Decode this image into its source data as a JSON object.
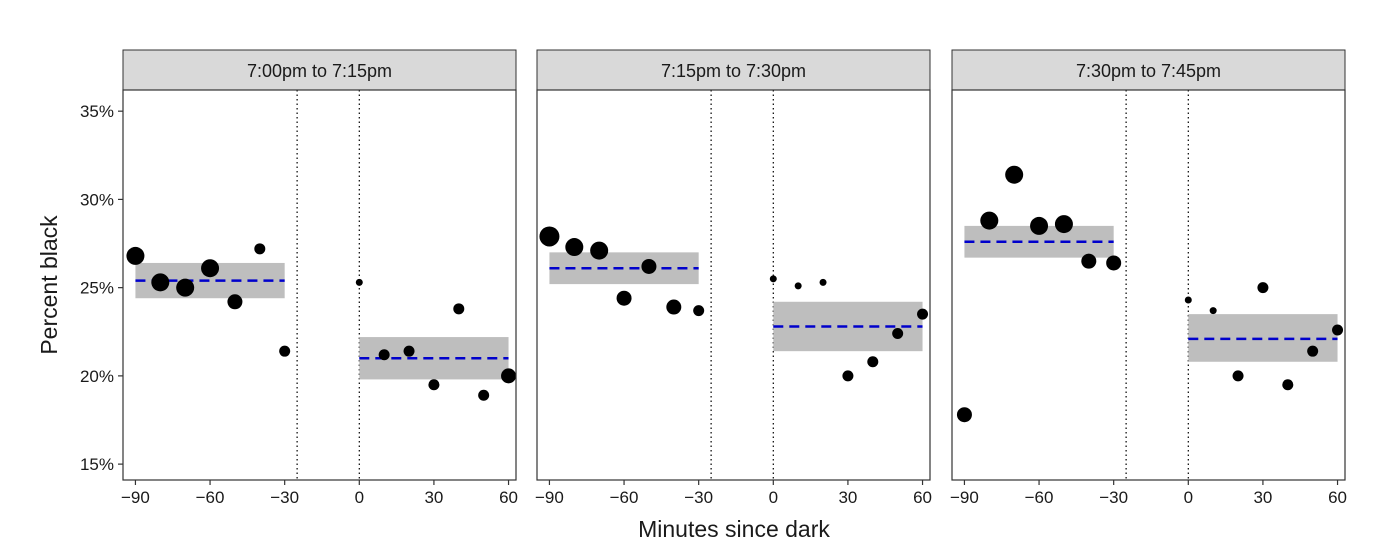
{
  "chart_data": {
    "type": "scatter",
    "xlabel": "Minutes since dark",
    "ylabel": "Percent black",
    "xlim": [
      -95,
      63
    ],
    "ylim": [
      14.1,
      36.2
    ],
    "x_ticks": [
      -90,
      -60,
      -30,
      0,
      30,
      60
    ],
    "y_ticks": [
      15,
      20,
      25,
      30,
      35
    ],
    "y_tick_labels": [
      "15%",
      "20%",
      "25%",
      "30%",
      "35%"
    ],
    "vlines": [
      -25,
      0
    ],
    "colors": {
      "points": "#000000",
      "fit": "#0000cc",
      "band": "#bebebe",
      "strip": "#d9d9d9"
    },
    "panels": [
      {
        "label": "7:00pm to 7:15pm",
        "points": [
          {
            "x": -90,
            "y": 26.8,
            "size": 3
          },
          {
            "x": -80,
            "y": 25.3,
            "size": 3
          },
          {
            "x": -70,
            "y": 25.0,
            "size": 3
          },
          {
            "x": -60,
            "y": 26.1,
            "size": 3
          },
          {
            "x": -50,
            "y": 24.2,
            "size": 2
          },
          {
            "x": -40,
            "y": 27.2,
            "size": 1
          },
          {
            "x": -30,
            "y": 21.4,
            "size": 1
          },
          {
            "x": 0,
            "y": 25.3,
            "size": 0
          },
          {
            "x": 10,
            "y": 21.2,
            "size": 1
          },
          {
            "x": 20,
            "y": 21.4,
            "size": 1
          },
          {
            "x": 30,
            "y": 19.5,
            "size": 1
          },
          {
            "x": 40,
            "y": 23.8,
            "size": 1
          },
          {
            "x": 50,
            "y": 18.9,
            "size": 1
          },
          {
            "x": 60,
            "y": 20.0,
            "size": 2
          }
        ],
        "fits": [
          {
            "x_start": -90,
            "x_end": -30,
            "y": 25.4,
            "lower": 24.4,
            "upper": 26.4
          },
          {
            "x_start": 0,
            "x_end": 60,
            "y": 21.0,
            "lower": 19.8,
            "upper": 22.2
          }
        ]
      },
      {
        "label": "7:15pm to 7:30pm",
        "points": [
          {
            "x": -90,
            "y": 27.9,
            "size": 4
          },
          {
            "x": -80,
            "y": 27.3,
            "size": 3
          },
          {
            "x": -70,
            "y": 27.1,
            "size": 3
          },
          {
            "x": -60,
            "y": 24.4,
            "size": 2
          },
          {
            "x": -50,
            "y": 26.2,
            "size": 2
          },
          {
            "x": -40,
            "y": 23.9,
            "size": 2
          },
          {
            "x": -30,
            "y": 23.7,
            "size": 1
          },
          {
            "x": 0,
            "y": 25.5,
            "size": 0
          },
          {
            "x": 10,
            "y": 25.1,
            "size": 0
          },
          {
            "x": 20,
            "y": 25.3,
            "size": 0
          },
          {
            "x": 30,
            "y": 20.0,
            "size": 1
          },
          {
            "x": 40,
            "y": 20.8,
            "size": 1
          },
          {
            "x": 50,
            "y": 22.4,
            "size": 1
          },
          {
            "x": 60,
            "y": 23.5,
            "size": 1
          }
        ],
        "fits": [
          {
            "x_start": -90,
            "x_end": -30,
            "y": 26.1,
            "lower": 25.2,
            "upper": 27.0
          },
          {
            "x_start": 0,
            "x_end": 60,
            "y": 22.8,
            "lower": 21.4,
            "upper": 24.2
          }
        ]
      },
      {
        "label": "7:30pm to 7:45pm",
        "points": [
          {
            "x": -90,
            "y": 17.8,
            "size": 2
          },
          {
            "x": -80,
            "y": 28.8,
            "size": 3
          },
          {
            "x": -70,
            "y": 31.4,
            "size": 3
          },
          {
            "x": -60,
            "y": 28.5,
            "size": 3
          },
          {
            "x": -50,
            "y": 28.6,
            "size": 3
          },
          {
            "x": -40,
            "y": 26.5,
            "size": 2
          },
          {
            "x": -30,
            "y": 26.4,
            "size": 2
          },
          {
            "x": 0,
            "y": 24.3,
            "size": 0
          },
          {
            "x": 10,
            "y": 23.7,
            "size": 0
          },
          {
            "x": 20,
            "y": 20.0,
            "size": 1
          },
          {
            "x": 30,
            "y": 25.0,
            "size": 1
          },
          {
            "x": 40,
            "y": 19.5,
            "size": 1
          },
          {
            "x": 50,
            "y": 21.4,
            "size": 1
          },
          {
            "x": 60,
            "y": 22.6,
            "size": 1
          }
        ],
        "fits": [
          {
            "x_start": -90,
            "x_end": -30,
            "y": 27.6,
            "lower": 26.7,
            "upper": 28.5
          },
          {
            "x_start": 0,
            "x_end": 60,
            "y": 22.1,
            "lower": 20.8,
            "upper": 23.5
          }
        ]
      }
    ]
  }
}
